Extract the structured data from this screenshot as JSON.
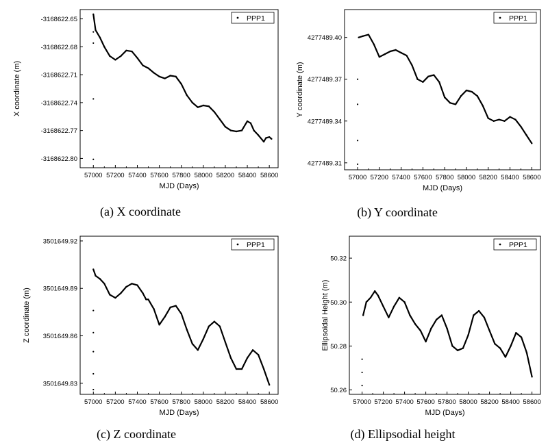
{
  "chart_data": [
    {
      "type": "scatter",
      "caption": "(a) X coordinate",
      "xlabel": "MJD (Days)",
      "ylabel": "X coordinate (m)",
      "xlim": [
        56880,
        58680
      ],
      "ylim": [
        -3168622.81,
        -3168622.64
      ],
      "xticks": [
        57000,
        57200,
        57400,
        57600,
        57800,
        58000,
        58200,
        58400,
        58600
      ],
      "xtick_labels": [
        "57000",
        "57200",
        "57400",
        "57600",
        "57800",
        "58000",
        "58200",
        "58400",
        "58600"
      ],
      "yticks": [
        -3168622.65,
        -3168622.68,
        -3168622.71,
        -3168622.74,
        -3168622.77,
        -3168622.8
      ],
      "ytick_labels": [
        "-3168622.65",
        "-3168622.68",
        "-3168622.71",
        "-3168622.74",
        "-3168622.77",
        "-3168622.80"
      ],
      "legend": "top-right",
      "series": [
        {
          "name": "PPP1",
          "outliers": [
            [
              57000,
              -3168622.664
            ],
            [
              57000,
              -3168622.676
            ],
            [
              57000,
              -3168622.736
            ],
            [
              57000,
              -3168622.801
            ]
          ],
          "x": [
            57000,
            57020,
            57060,
            57100,
            57150,
            57200,
            57250,
            57300,
            57350,
            57400,
            57450,
            57500,
            57550,
            57600,
            57650,
            57700,
            57750,
            57800,
            57850,
            57900,
            57950,
            58000,
            58050,
            58100,
            58150,
            58200,
            58250,
            58300,
            58350,
            58400,
            58430,
            58460,
            58500,
            58550,
            58570,
            58600,
            58620
          ],
          "y": [
            -3168622.645,
            -3168622.662,
            -3168622.67,
            -3168622.68,
            -3168622.69,
            -3168622.694,
            -3168622.69,
            -3168622.684,
            -3168622.685,
            -3168622.692,
            -3168622.7,
            -3168622.703,
            -3168622.708,
            -3168622.712,
            -3168622.714,
            -3168622.711,
            -3168622.712,
            -3168622.72,
            -3168622.732,
            -3168622.74,
            -3168622.745,
            -3168622.743,
            -3168622.744,
            -3168622.75,
            -3168622.758,
            -3168622.766,
            -3168622.77,
            -3168622.771,
            -3168622.77,
            -3168622.76,
            -3168622.762,
            -3168622.77,
            -3168622.775,
            -3168622.782,
            -3168622.778,
            -3168622.777,
            -3168622.779
          ]
        }
      ]
    },
    {
      "type": "scatter",
      "caption": "(b) Y coordinate",
      "xlabel": "MJD (Days)",
      "ylabel": "Y coordinate (m)",
      "xlim": [
        56880,
        58680
      ],
      "ylim": [
        4277489.305,
        4277489.42
      ],
      "xticks": [
        57000,
        57200,
        57400,
        57600,
        57800,
        58000,
        58200,
        58400,
        58600
      ],
      "xtick_labels": [
        "57000",
        "57200",
        "57400",
        "57600",
        "57800",
        "58000",
        "58200",
        "58400",
        "58600"
      ],
      "yticks": [
        4277489.31,
        4277489.34,
        4277489.37,
        4277489.4
      ],
      "ytick_labels": [
        "4277489.31",
        "4277489.34",
        "4277489.37",
        "4277489.40"
      ],
      "legend": "top-right",
      "series": [
        {
          "name": "PPP1",
          "outliers": [
            [
              57000,
              4277489.309
            ],
            [
              57000,
              4277489.326
            ],
            [
              57000,
              4277489.352
            ],
            [
              57000,
              4277489.37
            ]
          ],
          "x": [
            57010,
            57050,
            57100,
            57150,
            57200,
            57250,
            57300,
            57350,
            57400,
            57450,
            57500,
            57550,
            57600,
            57650,
            57700,
            57750,
            57800,
            57850,
            57900,
            57950,
            58000,
            58050,
            58100,
            58150,
            58200,
            58250,
            58300,
            58350,
            58400,
            58450,
            58500,
            58550,
            58600
          ],
          "y": [
            4277489.4,
            4277489.401,
            4277489.402,
            4277489.395,
            4277489.386,
            4277489.388,
            4277489.39,
            4277489.391,
            4277489.389,
            4277489.387,
            4277489.38,
            4277489.37,
            4277489.368,
            4277489.372,
            4277489.373,
            4277489.368,
            4277489.357,
            4277489.353,
            4277489.352,
            4277489.358,
            4277489.362,
            4277489.361,
            4277489.358,
            4277489.351,
            4277489.342,
            4277489.34,
            4277489.341,
            4277489.34,
            4277489.343,
            4277489.341,
            4277489.336,
            4277489.33,
            4277489.324
          ]
        }
      ]
    },
    {
      "type": "scatter",
      "caption": "(c) Z coordinate",
      "xlabel": "MJD (Days)",
      "ylabel": "Z coordinate (m)",
      "xlim": [
        56880,
        58680
      ],
      "ylim": [
        3501649.823,
        3501649.923
      ],
      "xticks": [
        57000,
        57200,
        57400,
        57600,
        57800,
        58000,
        58200,
        58400,
        58600
      ],
      "xtick_labels": [
        "57000",
        "57200",
        "57400",
        "57600",
        "57800",
        "58000",
        "58200",
        "58400",
        "58600"
      ],
      "yticks": [
        3501649.83,
        3501649.86,
        3501649.89,
        3501649.92
      ],
      "ytick_labels": [
        "3501649.83",
        "3501649.86",
        "3501649.89",
        "3501649.92"
      ],
      "legend": "top-right",
      "series": [
        {
          "name": "PPP1",
          "outliers": [
            [
              57000,
              3501649.826
            ],
            [
              57000,
              3501649.836
            ],
            [
              57000,
              3501649.85
            ],
            [
              57000,
              3501649.862
            ],
            [
              57000,
              3501649.876
            ]
          ],
          "x": [
            57000,
            57020,
            57060,
            57100,
            57150,
            57200,
            57250,
            57300,
            57350,
            57400,
            57450,
            57480,
            57500,
            57550,
            57600,
            57650,
            57700,
            57750,
            57800,
            57850,
            57900,
            57950,
            58000,
            58050,
            58100,
            58150,
            58200,
            58250,
            58300,
            58350,
            58400,
            58450,
            58500,
            58550,
            58600
          ],
          "y": [
            3501649.902,
            3501649.898,
            3501649.896,
            3501649.893,
            3501649.886,
            3501649.884,
            3501649.887,
            3501649.891,
            3501649.893,
            3501649.892,
            3501649.887,
            3501649.883,
            3501649.883,
            3501649.877,
            3501649.867,
            3501649.872,
            3501649.878,
            3501649.879,
            3501649.874,
            3501649.864,
            3501649.855,
            3501649.851,
            3501649.858,
            3501649.866,
            3501649.869,
            3501649.866,
            3501649.856,
            3501649.846,
            3501649.839,
            3501649.839,
            3501649.846,
            3501649.851,
            3501649.848,
            3501649.839,
            3501649.829
          ]
        }
      ]
    },
    {
      "type": "scatter",
      "caption": "(d) Ellipsodial height",
      "xlabel": "MJD (Days)",
      "ylabel": "Ellipsoidal Height (m)",
      "xlim": [
        56880,
        58680
      ],
      "ylim": [
        50.258,
        50.33
      ],
      "xticks": [
        57000,
        57200,
        57400,
        57600,
        57800,
        58000,
        58200,
        58400,
        58600
      ],
      "xtick_labels": [
        "57000",
        "57200",
        "57400",
        "57600",
        "57800",
        "58000",
        "58200",
        "58400",
        "58600"
      ],
      "yticks": [
        50.26,
        50.28,
        50.3,
        50.32
      ],
      "ytick_labels": [
        "50.26",
        "50.28",
        "50.30",
        "50.32"
      ],
      "legend": "top-right",
      "series": [
        {
          "name": "PPP1",
          "outliers": [
            [
              57000,
              50.262
            ],
            [
              57000,
              50.268
            ],
            [
              57000,
              50.274
            ]
          ],
          "x": [
            57010,
            57040,
            57080,
            57120,
            57150,
            57200,
            57250,
            57300,
            57350,
            57400,
            57450,
            57500,
            57550,
            57600,
            57650,
            57700,
            57750,
            57800,
            57850,
            57900,
            57950,
            58000,
            58050,
            58100,
            58150,
            58200,
            58250,
            58300,
            58350,
            58400,
            58450,
            58500,
            58550,
            58600
          ],
          "y": [
            50.294,
            50.3,
            50.302,
            50.305,
            50.303,
            50.298,
            50.293,
            50.298,
            50.302,
            50.3,
            50.294,
            50.29,
            50.287,
            50.282,
            50.288,
            50.292,
            50.294,
            50.288,
            50.28,
            50.278,
            50.279,
            50.285,
            50.294,
            50.296,
            50.293,
            50.287,
            50.281,
            50.279,
            50.275,
            50.28,
            50.286,
            50.284,
            50.277,
            50.266
          ]
        }
      ]
    }
  ]
}
